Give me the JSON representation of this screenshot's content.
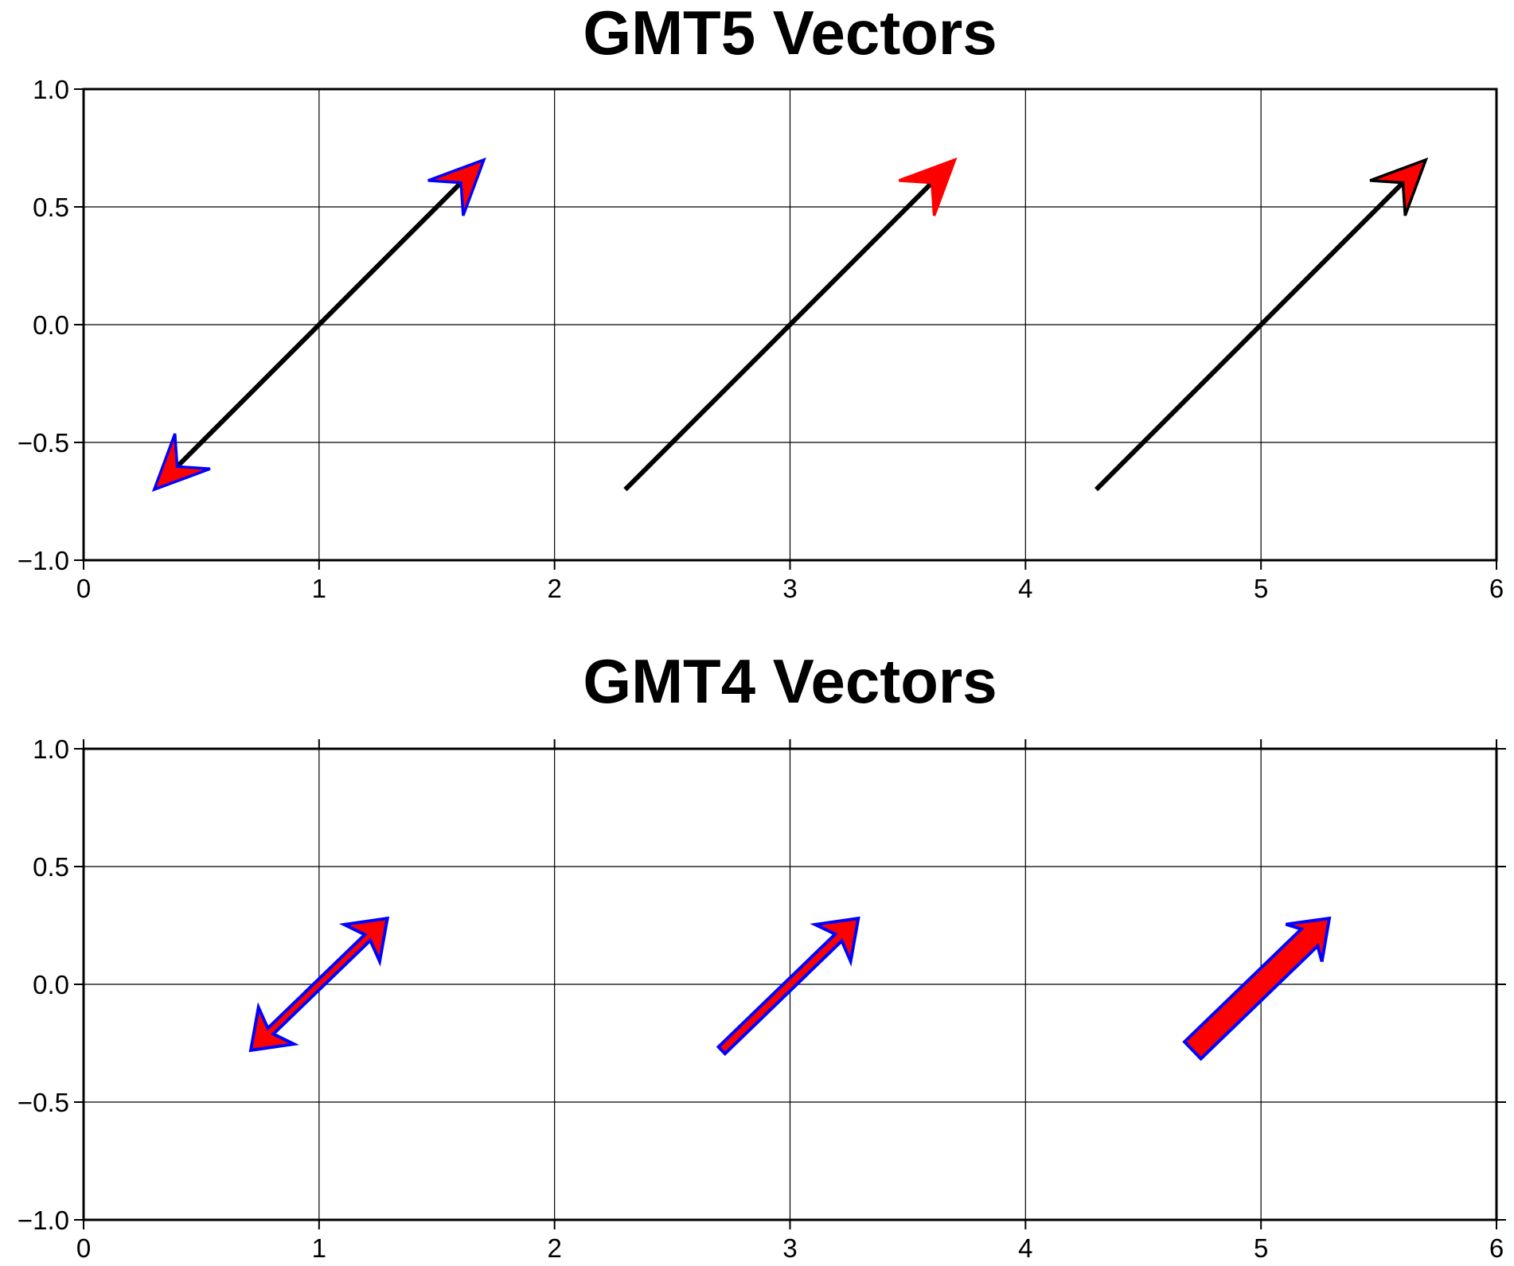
{
  "colors": {
    "fill": "#ff0000",
    "outline": "#0000ff",
    "line": "#000000",
    "grid": "#000000"
  },
  "chart_data": [
    {
      "type": "vector",
      "title": "GMT5 Vectors",
      "xlim": [
        0,
        6
      ],
      "ylim": [
        -1,
        1
      ],
      "x_ticks": [
        "0",
        "1",
        "2",
        "3",
        "4",
        "5",
        "6"
      ],
      "y_ticks": [
        "−1.0",
        "−0.5",
        "0.0",
        "0.5",
        "1.0"
      ],
      "grid": true,
      "vectors": [
        {
          "x0": 0.3,
          "y0": -0.7,
          "x1": 1.7,
          "y1": 0.7,
          "heads": "both",
          "head_fill": "#ff0000",
          "head_outline": "#0000ff"
        },
        {
          "x0": 2.3,
          "y0": -0.7,
          "x1": 3.7,
          "y1": 0.7,
          "heads": "end",
          "head_fill": "#ff0000",
          "head_outline": "#ff0000"
        },
        {
          "x0": 4.3,
          "y0": -0.7,
          "x1": 5.7,
          "y1": 0.7,
          "heads": "end",
          "head_fill": "#ff0000",
          "head_outline": "#000000"
        }
      ]
    },
    {
      "type": "vector",
      "title": "GMT4 Vectors",
      "xlim": [
        0,
        6
      ],
      "ylim": [
        -1,
        1
      ],
      "x_ticks": [
        "0",
        "1",
        "2",
        "3",
        "4",
        "5",
        "6"
      ],
      "y_ticks": [
        "−1.0",
        "−0.5",
        "0.0",
        "0.5",
        "1.0"
      ],
      "grid": true,
      "vectors": [
        {
          "x0": 0.71,
          "y0": -0.28,
          "x1": 1.29,
          "y1": 0.28,
          "heads": "both",
          "style": "outline",
          "shaft_width": 0.02,
          "head_fill": "#ff0000",
          "head_outline": "#0000ff"
        },
        {
          "x0": 2.71,
          "y0": -0.28,
          "x1": 3.29,
          "y1": 0.28,
          "heads": "end",
          "style": "outline",
          "shaft_width": 0.04,
          "head_fill": "#ff0000",
          "head_outline": "#0000ff"
        },
        {
          "x0": 4.71,
          "y0": -0.28,
          "x1": 5.29,
          "y1": 0.28,
          "heads": "end",
          "style": "outline",
          "shaft_width": 0.1,
          "head_fill": "#ff0000",
          "head_outline": "#0000ff"
        }
      ]
    }
  ]
}
